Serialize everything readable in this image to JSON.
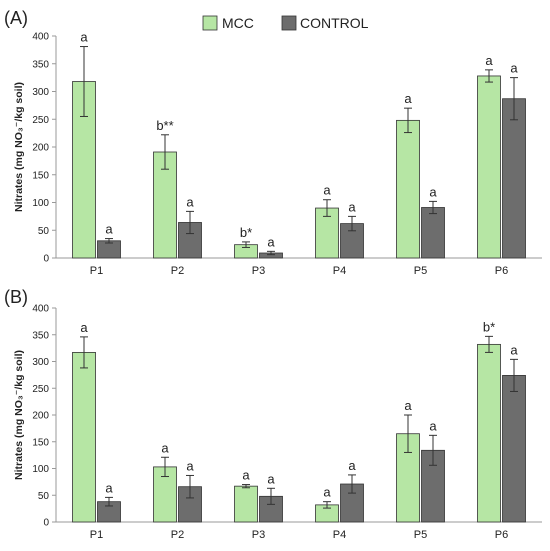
{
  "legend": {
    "entries": [
      "MCC",
      "CONTROL"
    ]
  },
  "colors": {
    "mcc": "#b6e6a4",
    "control": "#6d6d6d",
    "axis": "#999999",
    "error": "#333333"
  },
  "chart_data": [
    {
      "type": "bar",
      "panel_label": "(A)",
      "categories": [
        "P1",
        "P2",
        "P3",
        "P4",
        "P5",
        "P6"
      ],
      "ylabel": "Nitrates (mg NO₃⁻/kg soil)",
      "ylim": [
        0,
        400
      ],
      "yticks": [
        0,
        50,
        100,
        150,
        200,
        250,
        300,
        350,
        400
      ],
      "grid": false,
      "legend_position": "top-center",
      "series": [
        {
          "name": "MCC",
          "values": [
            318,
            191,
            24,
            90,
            248,
            328
          ],
          "errors": [
            63,
            31,
            5,
            15,
            22,
            11
          ],
          "annotations": [
            "a",
            "b**",
            "b*",
            "a",
            "a",
            "a"
          ]
        },
        {
          "name": "CONTROL",
          "values": [
            31,
            64,
            9,
            62,
            91,
            287
          ],
          "errors": [
            4,
            20,
            3,
            13,
            11,
            38
          ],
          "annotations": [
            "a",
            "a",
            "a",
            "a",
            "a",
            "a"
          ]
        }
      ]
    },
    {
      "type": "bar",
      "panel_label": "(B)",
      "categories": [
        "P1",
        "P2",
        "P3",
        "P4",
        "P5",
        "P6"
      ],
      "ylabel": "Nitrates (mg NO₃⁻/kg soil)",
      "ylim": [
        0,
        400
      ],
      "yticks": [
        0,
        50,
        100,
        150,
        200,
        250,
        300,
        350,
        400
      ],
      "grid": false,
      "series": [
        {
          "name": "MCC",
          "values": [
            317,
            103,
            67,
            32,
            165,
            332
          ],
          "errors": [
            29,
            18,
            3,
            6,
            35,
            15
          ],
          "annotations": [
            "a",
            "a",
            "a",
            "a",
            "a",
            "b*"
          ]
        },
        {
          "name": "CONTROL",
          "values": [
            38,
            66,
            48,
            71,
            134,
            274
          ],
          "errors": [
            8,
            21,
            15,
            17,
            28,
            30
          ],
          "annotations": [
            "a",
            "a",
            "a",
            "a",
            "a",
            "a"
          ]
        }
      ]
    }
  ]
}
